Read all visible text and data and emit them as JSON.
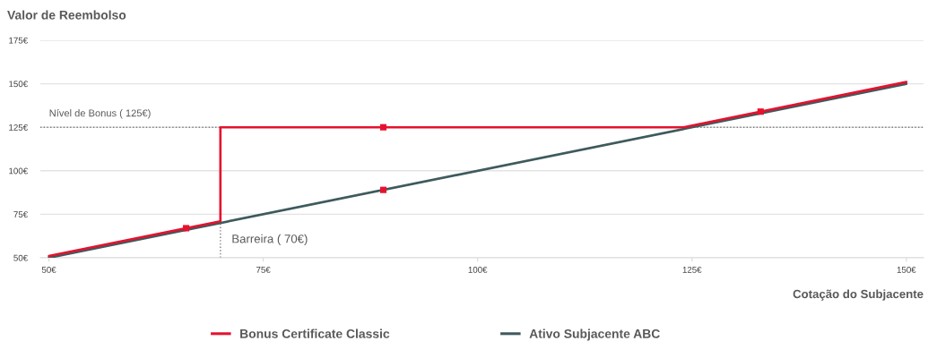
{
  "chart_data": {
    "type": "line",
    "ylabel": "Valor de Reembolso",
    "xlabel": "Cotação do Subjacente",
    "xlim": [
      49,
      152
    ],
    "xticks": [
      {
        "value": 50,
        "label": "50€"
      },
      {
        "value": 75,
        "label": "75€"
      },
      {
        "value": 100,
        "label": "100€"
      },
      {
        "value": 125,
        "label": "125€"
      },
      {
        "value": 150,
        "label": "150€"
      }
    ],
    "ylim": [
      50,
      175
    ],
    "yticks": [
      {
        "value": 50,
        "label": "50€"
      },
      {
        "value": 75,
        "label": "75€"
      },
      {
        "value": 100,
        "label": "100€"
      },
      {
        "value": 125,
        "label": "125€"
      },
      {
        "value": 150,
        "label": "150€"
      },
      {
        "value": 175,
        "label": "175€"
      }
    ],
    "series": [
      {
        "name": "Ativo Subjacente ABC",
        "color": "#3e5a5d",
        "x": [
          50,
          150
        ],
        "values": [
          50,
          150
        ]
      },
      {
        "name": "Bonus Certificate Classic",
        "color": "#e5122f",
        "x": [
          50,
          70,
          70,
          124,
          150
        ],
        "values": [
          51,
          71,
          125,
          125,
          151
        ]
      },
      {
        "type": "scatter",
        "marker": "square",
        "color": "#e5122f",
        "x": [
          66,
          89,
          89,
          133
        ],
        "values": [
          67,
          125,
          89,
          134
        ]
      }
    ],
    "ref_lines": [
      {
        "axis": "y",
        "value": 125,
        "label": "Nível de Bonus ( 125€)",
        "color": "#7f7f7f",
        "line_style": "dotted"
      },
      {
        "axis": "x",
        "value": 70,
        "label": "Barreira ( 70€)",
        "color": "#7f7f7f",
        "line_style": "dotted"
      }
    ],
    "grid": "y",
    "legend": "bottom"
  }
}
